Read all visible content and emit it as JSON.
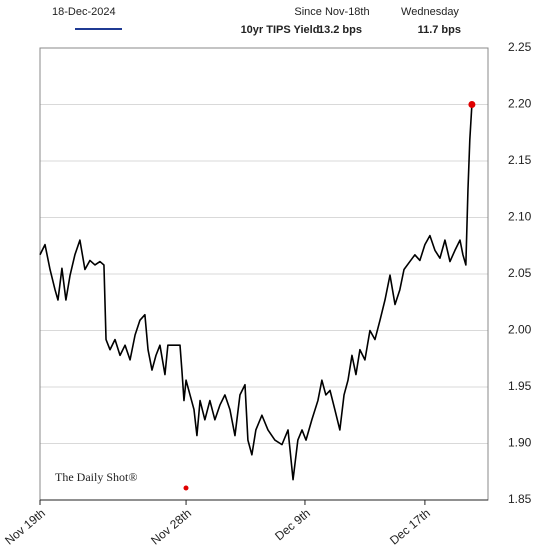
{
  "chart_data": {
    "type": "line",
    "date": "18-Dec-2024",
    "stats": [
      {
        "label": "Since Nov-18th",
        "text": "13.2 bps"
      },
      {
        "label": "Wednesday",
        "text": "11.7 bps"
      }
    ],
    "source": "The Daily Shot®",
    "x": [
      0,
      0.24,
      0.48,
      0.72,
      0.86,
      1.05,
      1.24,
      1.44,
      1.67,
      1.91,
      2.15,
      2.39,
      2.63,
      2.87,
      3.06,
      3.16,
      3.35,
      3.59,
      3.83,
      4.07,
      4.31,
      4.55,
      4.78,
      5.02,
      5.17,
      5.36,
      5.55,
      5.74,
      5.98,
      6.12,
      6.7,
      6.79,
      6.89,
      6.99,
      7.18,
      7.37,
      7.51,
      7.66,
      7.89,
      8.13,
      8.37,
      8.61,
      8.85,
      9.09,
      9.33,
      9.57,
      9.81,
      9.95,
      10.14,
      10.33,
      10.62,
      10.91,
      11.24,
      11.58,
      11.87,
      12.11,
      12.34,
      12.54,
      12.73,
      13.01,
      13.3,
      13.49,
      13.68,
      13.88,
      14.11,
      14.35,
      14.55,
      14.74,
      14.93,
      15.12,
      15.31,
      15.55,
      15.79,
      16.03,
      16.27,
      16.51,
      16.75,
      16.99,
      17.22,
      17.42,
      17.7,
      17.94,
      18.18,
      18.42,
      18.66,
      18.9,
      19.14,
      19.38,
      19.62,
      19.86,
      20.1,
      20.24,
      20.38,
      20.48,
      20.57,
      20.67
    ],
    "series": [
      {
        "name": "10yr TIPS Yield",
        "color": "#000000",
        "legend_color": "#1f3a93",
        "end_marker_color": "#e00000",
        "values": [
          2.067,
          2.076,
          2.054,
          2.036,
          2.027,
          2.055,
          2.027,
          2.049,
          2.067,
          2.08,
          2.054,
          2.062,
          2.058,
          2.061,
          2.058,
          1.992,
          1.983,
          1.992,
          1.978,
          1.987,
          1.974,
          1.996,
          2.009,
          2.014,
          1.983,
          1.965,
          1.978,
          1.987,
          1.961,
          1.987,
          1.987,
          1.965,
          1.938,
          1.956,
          1.943,
          1.93,
          1.907,
          1.938,
          1.921,
          1.938,
          1.921,
          1.934,
          1.943,
          1.93,
          1.907,
          1.943,
          1.952,
          1.903,
          1.89,
          1.912,
          1.925,
          1.912,
          1.903,
          1.899,
          1.912,
          1.868,
          1.903,
          1.912,
          1.903,
          1.921,
          1.938,
          1.956,
          1.943,
          1.947,
          1.93,
          1.912,
          1.943,
          1.956,
          1.978,
          1.961,
          1.983,
          1.974,
          2.0,
          1.992,
          2.009,
          2.027,
          2.049,
          2.023,
          2.036,
          2.054,
          2.061,
          2.067,
          2.062,
          2.076,
          2.084,
          2.071,
          2.064,
          2.08,
          2.061,
          2.071,
          2.08,
          2.067,
          2.058,
          2.124,
          2.169,
          2.2
        ]
      }
    ],
    "xlim": [
      0,
      21.44
    ],
    "xticks": [
      {
        "value": 0,
        "label": "Nov 19th"
      },
      {
        "value": 6.99,
        "label": "Nov 28th"
      },
      {
        "value": 12.68,
        "label": "Dec 9th"
      },
      {
        "value": 18.42,
        "label": "Dec 17th"
      }
    ],
    "ylim": [
      1.85,
      2.25
    ],
    "yticks": [
      1.85,
      {
        "value": 1.9,
        "label": "1.90"
      },
      1.95,
      {
        "value": 2.0,
        "label": "2.00"
      },
      2.05,
      {
        "value": 2.1,
        "label": "2.10"
      },
      2.15,
      {
        "value": 2.2,
        "label": "2.20"
      },
      2.25
    ],
    "grid": true
  }
}
